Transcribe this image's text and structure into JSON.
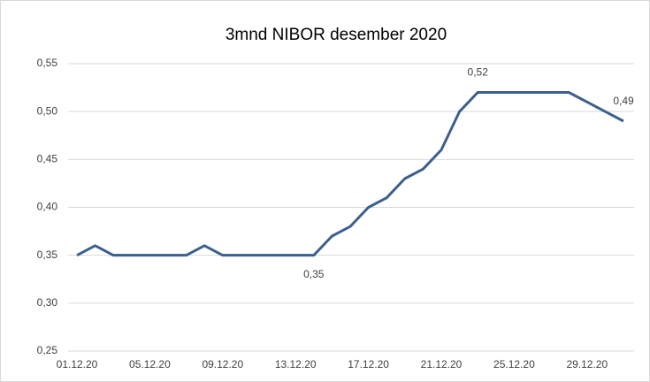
{
  "chart_data": {
    "type": "line",
    "title": "3mnd NIBOR desember 2020",
    "categories": [
      "01.12.20",
      null,
      null,
      null,
      "05.12.20",
      null,
      null,
      null,
      "09.12.20",
      null,
      null,
      null,
      "13.12.20",
      null,
      null,
      null,
      "17.12.20",
      null,
      null,
      null,
      "21.12.20",
      null,
      null,
      null,
      "25.12.20",
      null,
      null,
      null,
      "29.12.20",
      null,
      null
    ],
    "series": [
      {
        "name": "3mnd NIBOR",
        "color": "#3b5f8e",
        "values": [
          0.35,
          0.36,
          0.35,
          0.35,
          0.35,
          0.35,
          0.35,
          0.36,
          0.35,
          0.35,
          0.35,
          0.35,
          0.35,
          0.35,
          0.37,
          0.38,
          0.4,
          0.41,
          0.43,
          0.44,
          0.46,
          0.5,
          0.52,
          0.52,
          0.52,
          0.52,
          0.52,
          0.52,
          0.51,
          0.5,
          0.49
        ],
        "value_labels": [
          null,
          null,
          null,
          null,
          null,
          null,
          null,
          null,
          null,
          null,
          null,
          null,
          null,
          "0,35",
          null,
          null,
          null,
          null,
          null,
          null,
          null,
          null,
          "0,52",
          null,
          null,
          null,
          null,
          null,
          null,
          null,
          "0,49"
        ]
      }
    ],
    "ylim": [
      0.25,
      0.55
    ],
    "yticks": [
      {
        "value": 0.25,
        "label": "0,25"
      },
      {
        "value": 0.3,
        "label": "0,30"
      },
      {
        "value": 0.35,
        "label": "0,35"
      },
      {
        "value": 0.4,
        "label": "0,40"
      },
      {
        "value": 0.45,
        "label": "0,45"
      },
      {
        "value": 0.5,
        "label": "0,50"
      },
      {
        "value": 0.55,
        "label": "0,55"
      }
    ],
    "grid": true
  }
}
